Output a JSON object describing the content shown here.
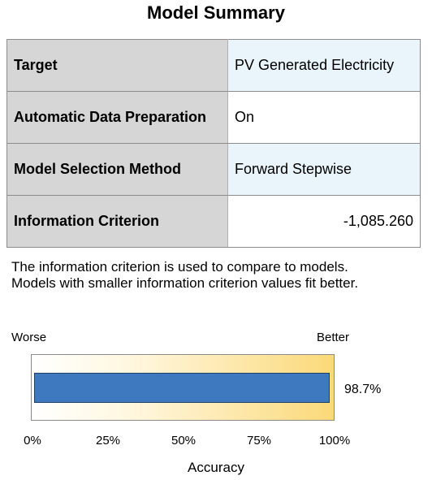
{
  "title": "Model Summary",
  "rows": [
    {
      "label": "Target",
      "value": "PV Generated Electricity"
    },
    {
      "label": "Automatic Data Preparation",
      "value": "On"
    },
    {
      "label": "Model Selection Method",
      "value": "Forward Stepwise"
    },
    {
      "label": "Information Criterion",
      "value": "-1,085.260"
    }
  ],
  "note": {
    "line1": "The information criterion is used to compare to models.",
    "line2": "Models with smaller information criterion values fit better."
  },
  "accuracy": {
    "worse_label": "Worse",
    "better_label": "Better",
    "value": 98.7,
    "value_label": "98.7%",
    "ticks": [
      "0%",
      "25%",
      "50%",
      "75%",
      "100%"
    ],
    "axis_title": "Accuracy",
    "bar_color": "#3e78bf"
  }
}
